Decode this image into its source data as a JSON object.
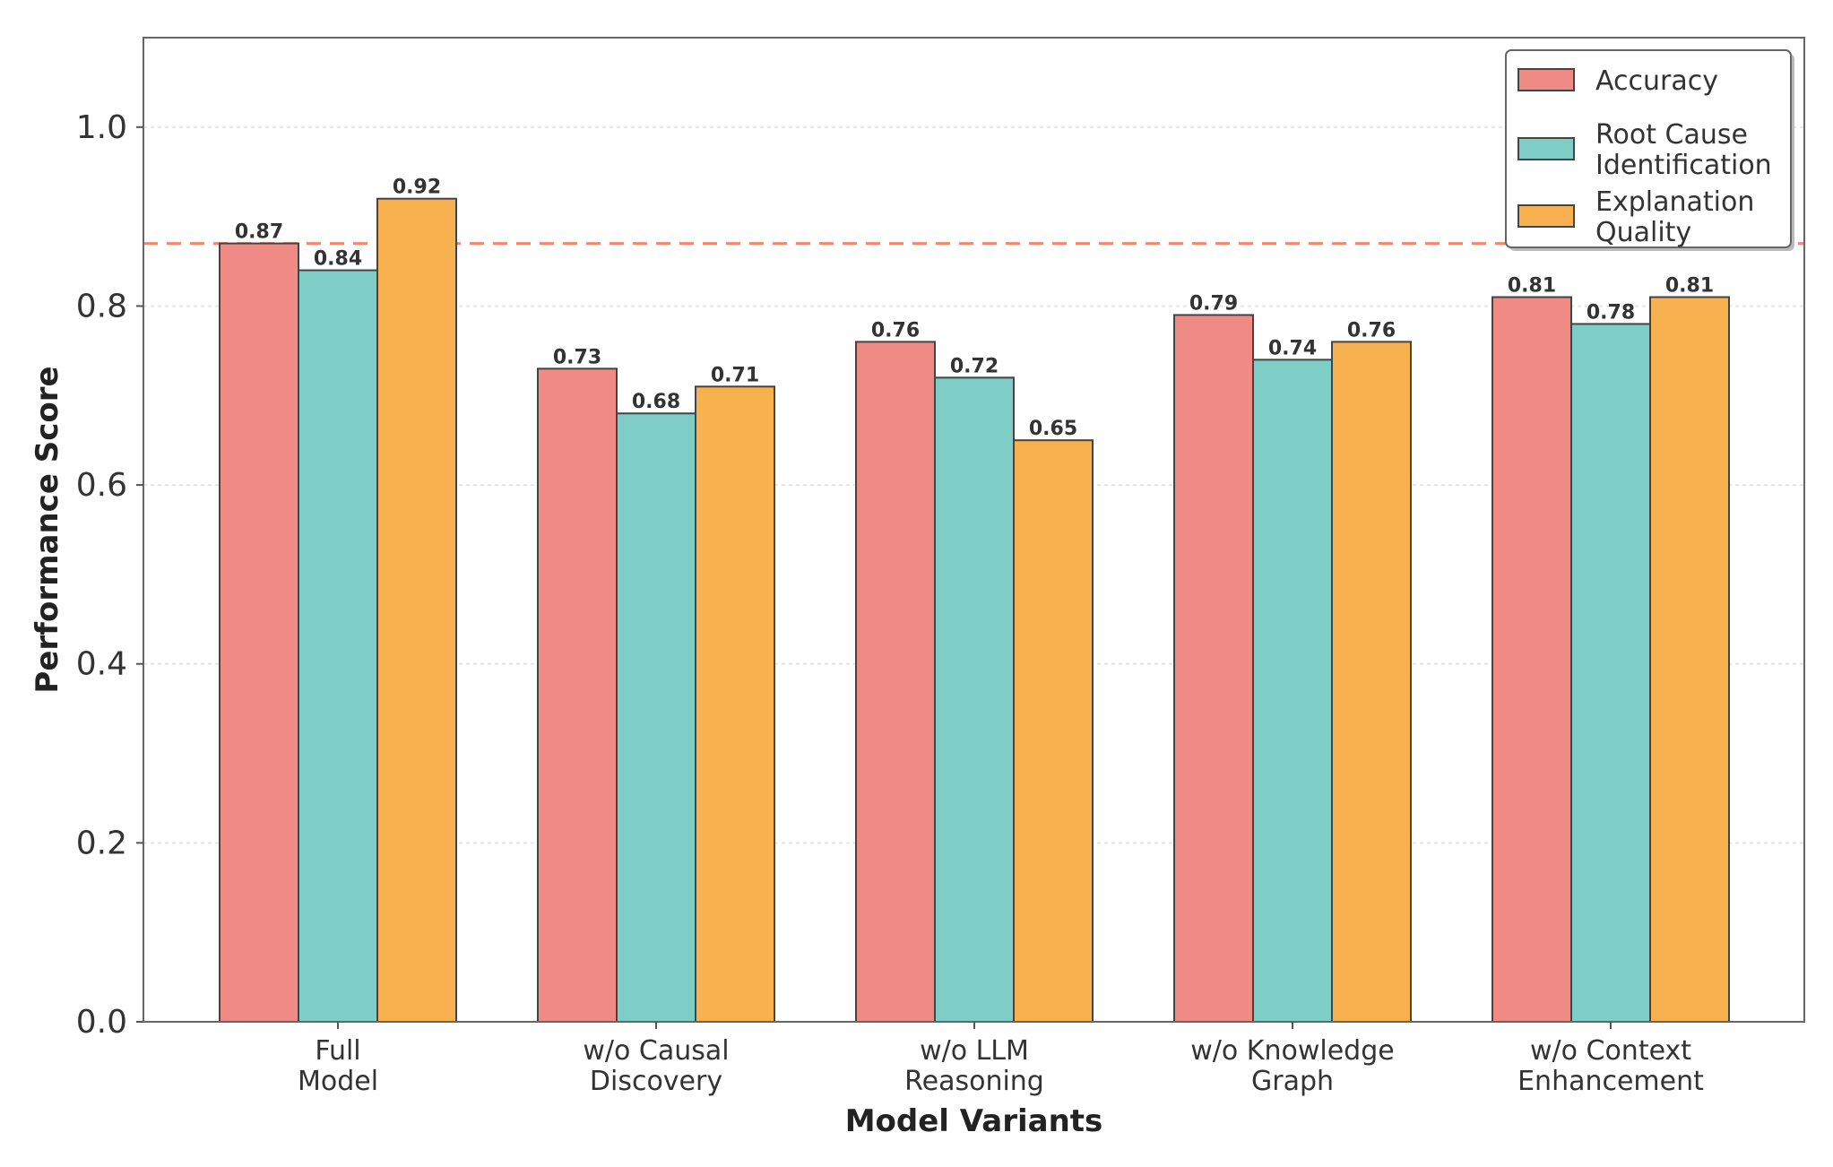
{
  "chart_data": {
    "type": "bar",
    "title": "",
    "xlabel": "Model Variants",
    "ylabel": "Performance Score",
    "ylim": [
      0,
      1.1
    ],
    "yticks": [
      0.0,
      0.2,
      0.4,
      0.6,
      0.8,
      1.0
    ],
    "ytick_labels": [
      "0.0",
      "0.2",
      "0.4",
      "0.6",
      "0.8",
      "1.0"
    ],
    "grid": true,
    "legend_position": "top-right",
    "categories": [
      [
        "Full",
        "Model"
      ],
      [
        "w/o Causal",
        "Discovery"
      ],
      [
        "w/o LLM",
        "Reasoning"
      ],
      [
        "w/o Knowledge",
        "Graph"
      ],
      [
        "w/o Context",
        "Enhancement"
      ]
    ],
    "series": [
      {
        "name": [
          "Accuracy"
        ],
        "color": "#f08a85",
        "values": [
          0.87,
          0.73,
          0.76,
          0.79,
          0.81
        ],
        "labels": [
          "0.87",
          "0.73",
          "0.76",
          "0.79",
          "0.81"
        ]
      },
      {
        "name": [
          "Root Cause",
          "Identification"
        ],
        "color": "#7ecdc6",
        "values": [
          0.84,
          0.68,
          0.72,
          0.74,
          0.78
        ],
        "labels": [
          "0.84",
          "0.68",
          "0.72",
          "0.74",
          "0.78"
        ]
      },
      {
        "name": [
          "Explanation",
          "Quality"
        ],
        "color": "#f8b14f",
        "values": [
          0.92,
          0.71,
          0.65,
          0.76,
          0.81
        ],
        "labels": [
          "0.92",
          "0.71",
          "0.65",
          "0.76",
          "0.81"
        ]
      }
    ],
    "reference_line": {
      "value": 0.87,
      "color": "#f4876b",
      "style": "dashed"
    }
  }
}
